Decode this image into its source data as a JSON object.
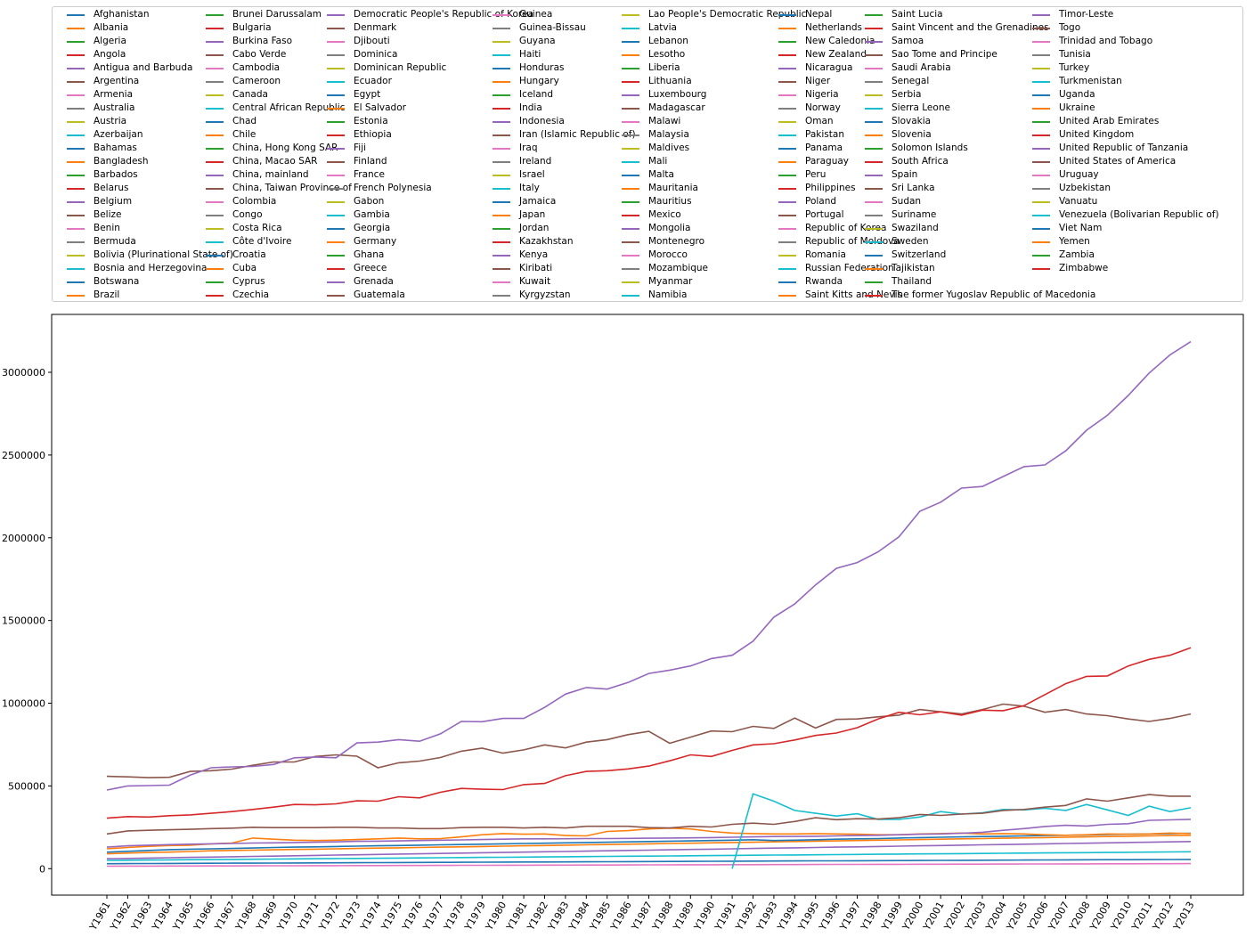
{
  "chart_data": {
    "type": "line",
    "title": "",
    "xlabel": "",
    "ylabel": "",
    "legend_placement": "top",
    "grid": false,
    "ylim": [
      -160000,
      3350000
    ],
    "y_ticks": [
      0,
      500000,
      1000000,
      1500000,
      2000000,
      2500000,
      3000000
    ],
    "y_tick_labels": [
      "0",
      "500000",
      "1000000",
      "1500000",
      "2000000",
      "2500000",
      "3000000"
    ],
    "categories": [
      "Y1961",
      "Y1962",
      "Y1963",
      "Y1964",
      "Y1965",
      "Y1966",
      "Y1967",
      "Y1968",
      "Y1969",
      "Y1970",
      "Y1971",
      "Y1972",
      "Y1973",
      "Y1974",
      "Y1975",
      "Y1976",
      "Y1977",
      "Y1978",
      "Y1979",
      "Y1980",
      "Y1981",
      "Y1982",
      "Y1983",
      "Y1984",
      "Y1985",
      "Y1986",
      "Y1987",
      "Y1988",
      "Y1989",
      "Y1990",
      "Y1991",
      "Y1992",
      "Y1993",
      "Y1994",
      "Y1995",
      "Y1996",
      "Y1997",
      "Y1998",
      "Y1999",
      "Y2000",
      "Y2001",
      "Y2002",
      "Y2003",
      "Y2004",
      "Y2005",
      "Y2006",
      "Y2007",
      "Y2008",
      "Y2009",
      "Y2010",
      "Y2011",
      "Y2012",
      "Y2013"
    ],
    "palette": [
      "#1f77b4",
      "#ff7f0e",
      "#2ca02c",
      "#d62728",
      "#9467bd",
      "#8c564b",
      "#e377c2",
      "#7f7f7f",
      "#bcbd22",
      "#17becf"
    ],
    "series_names": [
      "Afghanistan",
      "Albania",
      "Algeria",
      "Angola",
      "Antigua and Barbuda",
      "Argentina",
      "Armenia",
      "Australia",
      "Austria",
      "Azerbaijan",
      "Bahamas",
      "Bangladesh",
      "Barbados",
      "Belarus",
      "Belgium",
      "Belize",
      "Benin",
      "Bermuda",
      "Bolivia (Plurinational State of)",
      "Bosnia and Herzegovina",
      "Botswana",
      "Brazil",
      "Brunei Darussalam",
      "Bulgaria",
      "Burkina Faso",
      "Cabo Verde",
      "Cambodia",
      "Cameroon",
      "Canada",
      "Central African Republic",
      "Chad",
      "Chile",
      "China, Hong Kong SAR",
      "China, Macao SAR",
      "China, mainland",
      "China, Taiwan Province of",
      "Colombia",
      "Congo",
      "Costa Rica",
      "Côte d'Ivoire",
      "Croatia",
      "Cuba",
      "Cyprus",
      "Czechia",
      "Democratic People's Republic of Korea",
      "Denmark",
      "Djibouti",
      "Dominica",
      "Dominican Republic",
      "Ecuador",
      "Egypt",
      "El Salvador",
      "Estonia",
      "Ethiopia",
      "Fiji",
      "Finland",
      "France",
      "French Polynesia",
      "Gabon",
      "Gambia",
      "Georgia",
      "Germany",
      "Ghana",
      "Greece",
      "Grenada",
      "Guatemala",
      "Guinea",
      "Guinea-Bissau",
      "Guyana",
      "Haiti",
      "Honduras",
      "Hungary",
      "Iceland",
      "India",
      "Indonesia",
      "Iran (Islamic Republic of)",
      "Iraq",
      "Ireland",
      "Israel",
      "Italy",
      "Jamaica",
      "Japan",
      "Jordan",
      "Kazakhstan",
      "Kenya",
      "Kiribati",
      "Kuwait",
      "Kyrgyzstan",
      "Lao People's Democratic Republic",
      "Latvia",
      "Lebanon",
      "Lesotho",
      "Liberia",
      "Lithuania",
      "Luxembourg",
      "Madagascar",
      "Malawi",
      "Malaysia",
      "Maldives",
      "Mali",
      "Malta",
      "Mauritania",
      "Mauritius",
      "Mexico",
      "Mongolia",
      "Montenegro",
      "Morocco",
      "Mozambique",
      "Myanmar",
      "Namibia",
      "Nepal",
      "Netherlands",
      "New Caledonia",
      "New Zealand",
      "Nicaragua",
      "Niger",
      "Nigeria",
      "Norway",
      "Oman",
      "Pakistan",
      "Panama",
      "Paraguay",
      "Peru",
      "Philippines",
      "Poland",
      "Portugal",
      "Republic of Korea",
      "Republic of Moldova",
      "Romania",
      "Russian Federation",
      "Rwanda",
      "Saint Kitts and Nevis",
      "Saint Lucia",
      "Saint Vincent and the Grenadines",
      "Samoa",
      "Sao Tome and Principe",
      "Saudi Arabia",
      "Senegal",
      "Serbia",
      "Sierra Leone",
      "Slovakia",
      "Slovenia",
      "Solomon Islands",
      "South Africa",
      "Spain",
      "Sri Lanka",
      "Sudan",
      "Suriname",
      "Swaziland",
      "Sweden",
      "Switzerland",
      "Tajikistan",
      "Thailand",
      "The former Yugoslav Republic of Macedonia",
      "Timor-Leste",
      "Togo",
      "Trinidad and Tobago",
      "Tunisia",
      "Turkey",
      "Turkmenistan",
      "Uganda",
      "Ukraine",
      "United Arab Emirates",
      "United Kingdom",
      "United Republic of Tanzania",
      "United States of America",
      "Uruguay",
      "Uzbekistan",
      "Vanuatu",
      "Venezuela (Bolivarian Republic of)",
      "Viet Nam",
      "Yemen",
      "Zambia",
      "Zimbabwe"
    ],
    "series": [
      {
        "name": "China, mainland",
        "values": [
          475000,
          500000,
          502000,
          505000,
          565000,
          610000,
          615000,
          618000,
          630000,
          670000,
          675000,
          670000,
          760000,
          765000,
          780000,
          770000,
          815000,
          890000,
          888000,
          908000,
          908000,
          975000,
          1055000,
          1095000,
          1085000,
          1125000,
          1180000,
          1200000,
          1225000,
          1270000,
          1290000,
          1375000,
          1520000,
          1600000,
          1715000,
          1815000,
          1850000,
          1915000,
          2005000,
          2160000,
          2215000,
          2300000,
          2310000,
          2370000,
          2430000,
          2440000,
          2525000,
          2650000,
          2740000,
          2860000,
          2995000,
          3105000,
          3185000
        ]
      },
      {
        "name": "India",
        "values": [
          305000,
          315000,
          312000,
          320000,
          325000,
          335000,
          345000,
          358000,
          372000,
          388000,
          386000,
          392000,
          410000,
          408000,
          435000,
          428000,
          462000,
          485000,
          480000,
          478000,
          508000,
          515000,
          562000,
          588000,
          592000,
          603000,
          620000,
          652000,
          688000,
          678000,
          715000,
          748000,
          755000,
          778000,
          805000,
          820000,
          852000,
          905000,
          945000,
          930000,
          948000,
          928000,
          958000,
          955000,
          985000,
          1052000,
          1118000,
          1162000,
          1165000,
          1225000,
          1265000,
          1290000,
          1335000
        ]
      },
      {
        "name": "China, Taiwan Province of",
        "values": [
          558000,
          555000,
          550000,
          552000,
          588000,
          592000,
          602000,
          625000,
          645000,
          645000,
          678000,
          688000,
          680000,
          610000,
          640000,
          650000,
          672000,
          710000,
          728000,
          698000,
          718000,
          748000,
          730000,
          765000,
          780000,
          810000,
          830000,
          758000,
          795000,
          832000,
          828000,
          860000,
          848000,
          910000,
          850000,
          902000,
          905000,
          918000,
          928000,
          962000,
          948000,
          935000,
          962000,
          995000,
          982000,
          945000,
          962000,
          935000,
          925000,
          905000,
          890000,
          908000,
          935000
        ]
      },
      {
        "name": "Iran (Islamic Republic of)",
        "values": [
          210000,
          228000,
          232000,
          235000,
          238000,
          242000,
          245000,
          250000,
          248000,
          248000,
          248000,
          250000,
          250000,
          246000,
          246000,
          242000,
          242000,
          248000,
          250000,
          250000,
          246000,
          250000,
          246000,
          256000,
          256000,
          256000,
          248000,
          246000,
          256000,
          252000,
          268000,
          275000,
          268000,
          285000,
          308000,
          296000,
          302000,
          300000,
          308000,
          328000,
          322000,
          330000,
          335000,
          352000,
          358000,
          372000,
          382000,
          422000,
          408000,
          428000,
          448000,
          438000,
          438000
        ]
      },
      {
        "name": "Turkmenistan",
        "values": [
          null,
          null,
          null,
          null,
          null,
          null,
          null,
          null,
          null,
          null,
          null,
          null,
          null,
          null,
          null,
          null,
          null,
          null,
          null,
          null,
          null,
          null,
          null,
          null,
          null,
          null,
          null,
          null,
          null,
          null,
          0,
          452000,
          408000,
          352000,
          335000,
          318000,
          332000,
          298000,
          298000,
          312000,
          345000,
          330000,
          338000,
          358000,
          355000,
          365000,
          352000,
          388000,
          355000,
          322000,
          378000,
          345000,
          368000
        ]
      },
      {
        "name": "Timor-Leste",
        "values": [
          130000,
          138000,
          142000,
          145000,
          148000,
          150000,
          152000,
          155000,
          156000,
          158000,
          160000,
          162000,
          165000,
          166000,
          168000,
          170000,
          172000,
          174000,
          176000,
          178000,
          180000,
          180000,
          181000,
          182000,
          182000,
          183000,
          184000,
          185000,
          186000,
          188000,
          190000,
          192000,
          194000,
          195000,
          196000,
          198000,
          200000,
          202000,
          205000,
          208000,
          210000,
          214000,
          220000,
          232000,
          242000,
          255000,
          262000,
          258000,
          268000,
          272000,
          292000,
          295000,
          298000
        ]
      },
      {
        "name": "Brazil",
        "values": [
          120000,
          128000,
          135000,
          140000,
          142000,
          150000,
          155000,
          185000,
          178000,
          172000,
          170000,
          172000,
          176000,
          180000,
          185000,
          180000,
          182000,
          192000,
          205000,
          212000,
          208000,
          210000,
          200000,
          198000,
          225000,
          230000,
          240000,
          245000,
          240000,
          225000,
          215000,
          212000,
          210000,
          210000,
          212000,
          210000,
          208000,
          205000,
          205000,
          210000,
          212000,
          215000,
          210000,
          212000,
          210000,
          205000,
          202000,
          205000,
          210000,
          208000,
          210000,
          215000,
          212000
        ]
      },
      {
        "name": "Egypt",
        "values": [
          100000,
          105000,
          110000,
          115000,
          118000,
          120000,
          122000,
          125000,
          128000,
          130000,
          132000,
          134000,
          136000,
          138000,
          140000,
          142000,
          144000,
          146000,
          148000,
          150000,
          152000,
          154000,
          156000,
          158000,
          160000,
          162000,
          164000,
          166000,
          168000,
          170000,
          172000,
          175000,
          170000,
          172000,
          175000,
          178000,
          180000,
          182000,
          185000,
          188000,
          190000,
          192000,
          194000,
          196000,
          198000,
          200000,
          202000,
          204000,
          206000,
          208000,
          210000,
          212000,
          214000
        ]
      },
      {
        "name": "Bangladesh",
        "values": [
          90000,
          94000,
          98000,
          100000,
          104000,
          108000,
          110000,
          112000,
          114000,
          116000,
          118000,
          120000,
          122000,
          124000,
          126000,
          128000,
          130000,
          132000,
          134000,
          136000,
          138000,
          140000,
          142000,
          144000,
          146000,
          148000,
          150000,
          152000,
          154000,
          156000,
          158000,
          160000,
          162000,
          164000,
          166000,
          168000,
          170000,
          172000,
          174000,
          176000,
          178000,
          180000,
          182000,
          184000,
          186000,
          188000,
          190000,
          192000,
          194000,
          196000,
          198000,
          200000,
          202000
        ]
      },
      {
        "name": "Indonesia",
        "values": [
          60000,
          62000,
          64000,
          66000,
          68000,
          70000,
          72000,
          74000,
          76000,
          78000,
          80000,
          82000,
          84000,
          86000,
          88000,
          90000,
          92000,
          94000,
          96000,
          98000,
          100000,
          102000,
          104000,
          106000,
          108000,
          110000,
          112000,
          114000,
          116000,
          118000,
          120000,
          122000,
          124000,
          126000,
          128000,
          130000,
          132000,
          134000,
          136000,
          138000,
          140000,
          142000,
          144000,
          146000,
          148000,
          150000,
          152000,
          154000,
          156000,
          158000,
          160000,
          162000,
          164000
        ]
      },
      {
        "name": "Pakistan",
        "values": [
          50000,
          51000,
          52000,
          53000,
          54000,
          55000,
          56000,
          57000,
          58000,
          59000,
          60000,
          61000,
          62000,
          63000,
          64000,
          65000,
          66000,
          67000,
          68000,
          69000,
          70000,
          71000,
          72000,
          73000,
          74000,
          75000,
          76000,
          77000,
          78000,
          79000,
          80000,
          81000,
          82000,
          83000,
          84000,
          85000,
          86000,
          87000,
          88000,
          89000,
          90000,
          91000,
          92000,
          93000,
          94000,
          95000,
          96000,
          97000,
          98000,
          99000,
          100000,
          101000,
          102000
        ]
      },
      {
        "name": "Viet Nam",
        "values": [
          30000,
          30500,
          31000,
          31500,
          32000,
          32500,
          33000,
          33500,
          34000,
          34500,
          35000,
          35500,
          36000,
          36500,
          37000,
          37500,
          38000,
          38500,
          39000,
          39500,
          40000,
          40500,
          41000,
          41500,
          42000,
          42500,
          43000,
          43500,
          44000,
          44500,
          45000,
          45500,
          46000,
          46500,
          47000,
          47500,
          48000,
          48500,
          49000,
          49500,
          50000,
          50500,
          51000,
          51500,
          52000,
          52500,
          53000,
          53500,
          54000,
          54500,
          55000,
          55500,
          56000
        ]
      },
      {
        "name": "Nigeria",
        "values": [
          15000,
          15300,
          15600,
          15900,
          16200,
          16500,
          16800,
          17100,
          17400,
          17700,
          18000,
          18300,
          18600,
          18900,
          19200,
          19500,
          19800,
          20100,
          20400,
          20700,
          21000,
          21300,
          21600,
          21900,
          22200,
          22500,
          22800,
          23100,
          23400,
          23700,
          24000,
          24300,
          24600,
          24900,
          25200,
          25500,
          25800,
          26100,
          26400,
          26700,
          27000,
          27300,
          27600,
          27900,
          28200,
          28500,
          28800,
          29100,
          29400,
          29700,
          30000,
          30300,
          30600
        ]
      }
    ]
  }
}
